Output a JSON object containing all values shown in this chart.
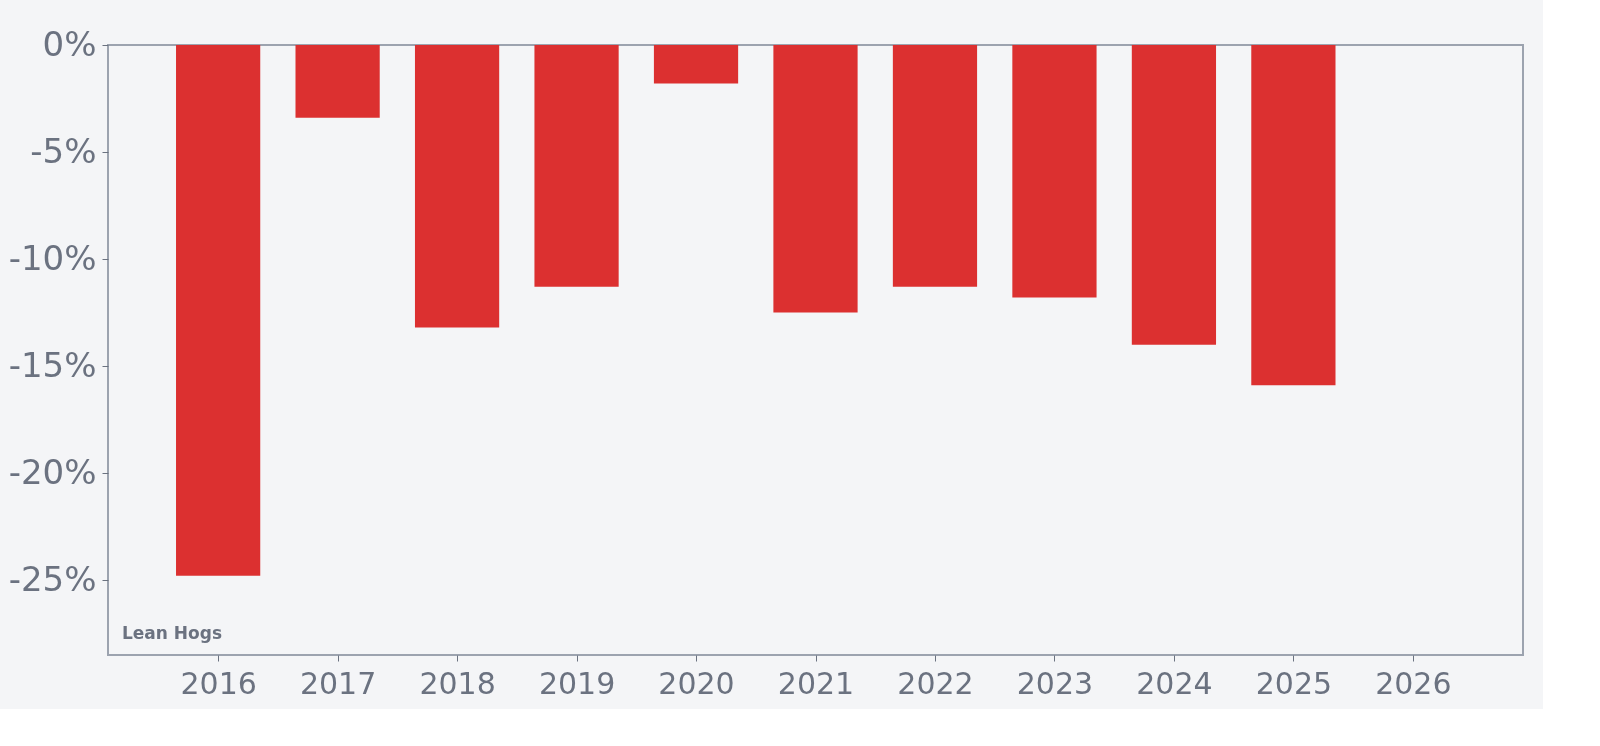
{
  "chart_data": {
    "type": "bar",
    "x": [
      2016,
      2017,
      2018,
      2019,
      2020,
      2021,
      2022,
      2023,
      2024,
      2025
    ],
    "values": [
      -24.8,
      -3.4,
      -13.2,
      -11.3,
      -1.8,
      -12.5,
      -11.3,
      -11.8,
      -14.0,
      -15.9
    ],
    "color": "#dc3030",
    "xlim": [
      2015.12,
      2026.88
    ],
    "xticks": [
      2016,
      2017,
      2018,
      2019,
      2020,
      2021,
      2022,
      2023,
      2024,
      2025,
      2026
    ],
    "ylim": [
      -28.5,
      0
    ],
    "yticks": [
      {
        "value": 0,
        "label": "0%"
      },
      {
        "value": -5,
        "label": "-5%"
      },
      {
        "value": -10,
        "label": "-10%"
      },
      {
        "value": -15,
        "label": "-15%"
      },
      {
        "value": -20,
        "label": "-20%"
      },
      {
        "value": -25,
        "label": "-25%"
      }
    ],
    "annotations": [
      {
        "text": "Lean Hogs"
      }
    ],
    "grid": false
  }
}
